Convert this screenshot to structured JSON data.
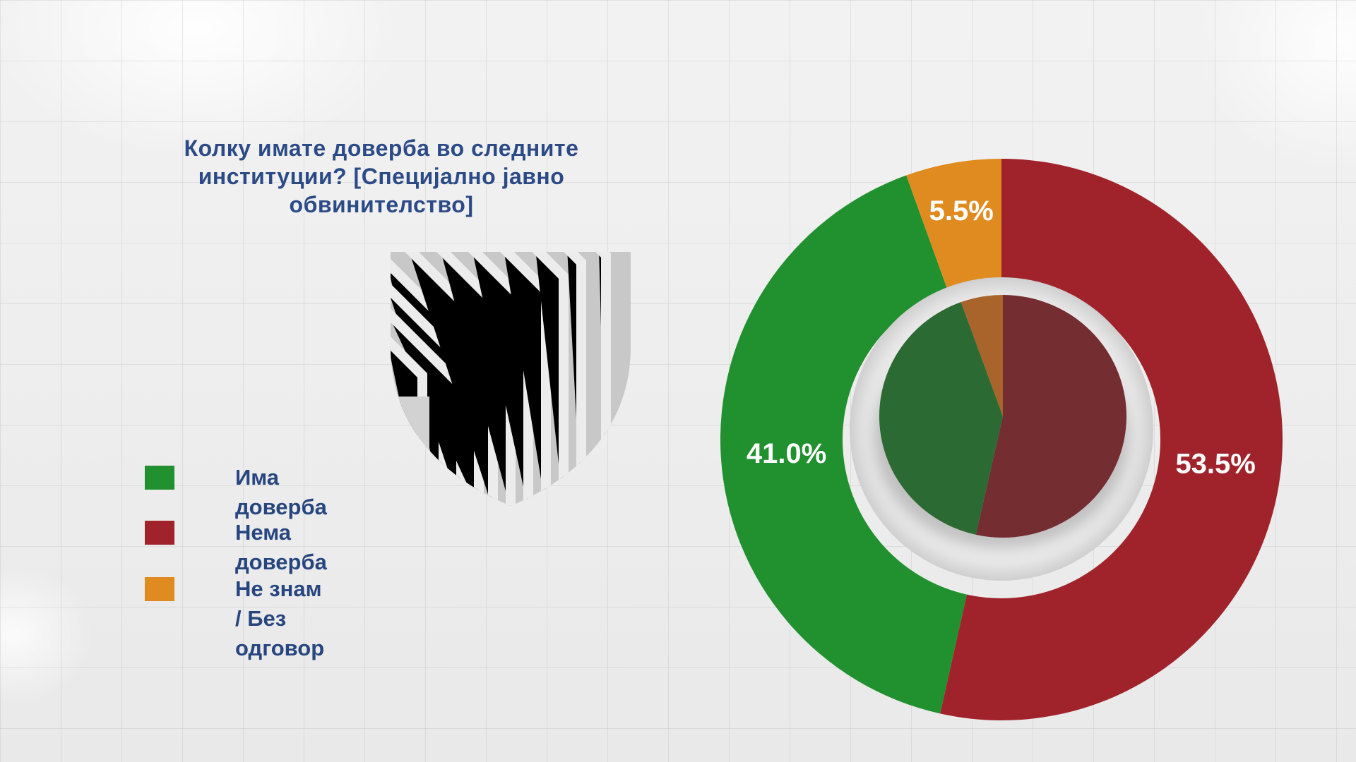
{
  "chart_data": {
    "type": "pie",
    "title": "Колку имате доверба во следните институции? [Специјално јавно обвинителство]",
    "series": [
      {
        "name": "Има доверба",
        "value": 41.0,
        "label": "41.0%",
        "color": "#21902f"
      },
      {
        "name": "Нема доверба",
        "value": 53.5,
        "label": "53.5%",
        "color": "#a0232b"
      },
      {
        "name": "Не знам\n/ Без одговор",
        "value": 5.5,
        "label": "5.5%",
        "color": "#e08b20"
      }
    ],
    "legend_position": "left"
  }
}
